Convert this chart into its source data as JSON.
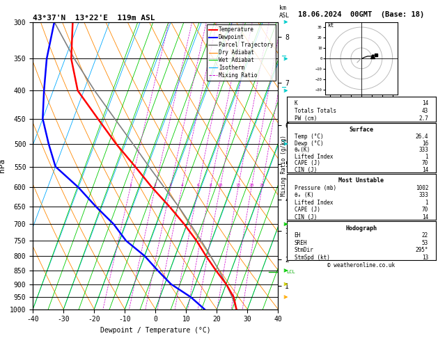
{
  "title_left": "43°37'N  13°22'E  119m ASL",
  "title_right": "18.06.2024  00GMT  (Base: 18)",
  "xlabel": "Dewpoint / Temperature (°C)",
  "ylabel_left": "hPa",
  "ylabel_mixing": "Mixing Ratio (g/kg)",
  "pressure_ticks": [
    300,
    350,
    400,
    450,
    500,
    550,
    600,
    650,
    700,
    750,
    800,
    850,
    900,
    950,
    1000
  ],
  "temp_min": -40,
  "temp_max": 40,
  "skew_factor": 35.0,
  "isotherm_color": "#00aaff",
  "dry_adiabat_color": "#ff8800",
  "wet_adiabat_color": "#00cc00",
  "mixing_ratio_color": "#cc00cc",
  "mixing_ratio_values": [
    1,
    2,
    3,
    4,
    6,
    8,
    10,
    15,
    20,
    25
  ],
  "temp_profile_T": [
    26.4,
    24.0,
    20.0,
    15.0,
    10.0,
    5.0,
    -1.0,
    -8.0,
    -16.0,
    -24.0,
    -33.0,
    -42.0,
    -52.0,
    -58.0,
    -62.0
  ],
  "temp_profile_Td": [
    16.0,
    10.0,
    2.0,
    -4.0,
    -10.0,
    -18.0,
    -24.0,
    -32.0,
    -40.0,
    -50.0,
    -55.0,
    -60.0,
    -63.0,
    -66.0,
    -68.0
  ],
  "pressure_profile": [
    1000,
    950,
    900,
    850,
    800,
    750,
    700,
    650,
    600,
    550,
    500,
    450,
    400,
    350,
    300
  ],
  "parcel_T": [
    26.4,
    23.5,
    20.0,
    16.0,
    11.5,
    6.5,
    1.0,
    -5.0,
    -12.0,
    -19.5,
    -27.5,
    -36.5,
    -46.5,
    -57.0,
    -68.0
  ],
  "parcel_pressure": [
    1000,
    950,
    900,
    850,
    800,
    750,
    700,
    650,
    600,
    550,
    500,
    450,
    400,
    350,
    300
  ],
  "lcl_pressure": 855,
  "km_ticks": [
    1,
    2,
    3,
    4,
    5,
    6,
    7,
    8
  ],
  "km_pressures": [
    907,
    812,
    721,
    632,
    544,
    462,
    387,
    319
  ],
  "stats": {
    "K": 14,
    "Totals_Totals": 43,
    "PW_cm": 2.7,
    "Surface_Temp": 26.4,
    "Surface_Dewp": 16,
    "theta_e_K": 333,
    "Lifted_Index": 1,
    "CAPE_J": 70,
    "CIN_J": 14,
    "MU_Pressure_mb": 1002,
    "MU_theta_e_K": 333,
    "MU_Lifted_Index": 1,
    "MU_CAPE_J": 70,
    "MU_CIN_J": 14,
    "EH": 22,
    "SREH": 53,
    "StmDir": 295,
    "StmSpd_kt": 13
  },
  "background_color": "#ffffff",
  "wind_arrows": [
    {
      "pressure": 300,
      "color": "#00cccc",
      "barbs": 2
    },
    {
      "pressure": 350,
      "color": "#00cccc",
      "barbs": 2
    },
    {
      "pressure": 400,
      "color": "#00cccc",
      "barbs": 2
    },
    {
      "pressure": 500,
      "color": "#00cccc",
      "barbs": 2
    },
    {
      "pressure": 700,
      "color": "#00cc00",
      "barbs": 1
    },
    {
      "pressure": 850,
      "color": "#00cc00",
      "barbs": 1
    },
    {
      "pressure": 900,
      "color": "#cccc00",
      "barbs": 1
    },
    {
      "pressure": 950,
      "color": "#ffaa00",
      "barbs": 1
    }
  ]
}
